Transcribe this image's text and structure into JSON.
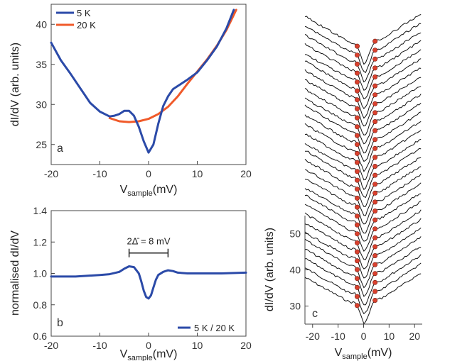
{
  "chart_data": [
    {
      "panel_label": "a",
      "type": "line",
      "xlabel_main": "V",
      "xlabel_sub": "sample",
      "xlabel_unit": "(mV)",
      "ylabel": "dI/dV (arb. units)",
      "xlim": [
        -20,
        20
      ],
      "ylim": [
        22.5,
        42.5
      ],
      "xticks": [
        "-20",
        "-10",
        "0",
        "10",
        "20"
      ],
      "yticks": [
        "25",
        "30",
        "35",
        "40"
      ],
      "legend_position": "top-left",
      "series": [
        {
          "name": "5 K",
          "color": "#2b4aa8",
          "x": [
            -20,
            -18,
            -16,
            -14,
            -12,
            -10,
            -8,
            -7,
            -6,
            -5,
            -4,
            -3,
            -2,
            -1,
            0,
            1,
            2,
            3,
            4,
            5,
            6,
            8,
            10,
            12,
            14,
            16,
            17.5
          ],
          "y": [
            37.7,
            35.5,
            33.8,
            32.0,
            30.2,
            29.1,
            28.5,
            28.6,
            28.8,
            29.2,
            29.2,
            28.6,
            27.2,
            25.4,
            24.0,
            25.0,
            27.6,
            29.8,
            31.0,
            31.9,
            32.3,
            33.1,
            34.0,
            35.5,
            37.2,
            39.5,
            41.8
          ]
        },
        {
          "name": "20 K",
          "color": "#f05a2a",
          "x": [
            -8,
            -6,
            -4,
            -2,
            0,
            2,
            4,
            6,
            8,
            10,
            12,
            14,
            16,
            18
          ],
          "y": [
            28.3,
            27.9,
            27.8,
            27.9,
            28.2,
            28.8,
            29.7,
            31.0,
            32.6,
            34.1,
            35.6,
            37.3,
            39.3,
            41.8
          ]
        }
      ]
    },
    {
      "panel_label": "b",
      "type": "line",
      "xlabel_main": "V",
      "xlabel_sub": "sample",
      "xlabel_unit": "(mV)",
      "ylabel": "normalised dI/dV",
      "xlim": [
        -20,
        20
      ],
      "ylim": [
        0.6,
        1.4
      ],
      "xticks": [
        "-20",
        "-10",
        "0",
        "10",
        "20"
      ],
      "yticks": [
        "0.6",
        "0.8",
        "1.0",
        "1.2",
        "1.4"
      ],
      "legend_position": "bottom-right",
      "annotation": "2Δ̄ = 8 mV",
      "annotation_range": [
        -4,
        4
      ],
      "annotation_y": 1.13,
      "series": [
        {
          "name": "5 K / 20 K",
          "color": "#2b4aa8",
          "x": [
            -20,
            -15,
            -10,
            -8,
            -6,
            -5,
            -4,
            -3,
            -2,
            -1.5,
            -1,
            -0.5,
            0,
            0.5,
            1,
            1.5,
            2,
            3,
            4,
            5,
            6,
            8,
            10,
            15,
            20
          ],
          "y": [
            0.98,
            0.98,
            0.99,
            0.995,
            1.01,
            1.03,
            1.045,
            1.04,
            1.0,
            0.95,
            0.89,
            0.85,
            0.84,
            0.86,
            0.91,
            0.96,
            0.99,
            1.01,
            1.02,
            1.015,
            1.005,
            1.0,
            1.0,
            1.0,
            1.005
          ]
        }
      ]
    },
    {
      "panel_label": "c",
      "type": "line",
      "xlabel_main": "V",
      "xlabel_sub": "sample",
      "xlabel_unit": "(mV)",
      "ylabel": "dI/dV (arb. units)",
      "xlim": [
        -23,
        23
      ],
      "ylim": [
        25,
        55
      ],
      "xticks": [
        "-20",
        "-10",
        "0",
        "10",
        "20"
      ],
      "yticks": [
        "30",
        "40",
        "50"
      ],
      "stack": {
        "count": 30,
        "color": "#111111",
        "marker_color": "#d9412e",
        "marker_left_mV": -2.5,
        "marker_right_mV": 4.5
      }
    }
  ]
}
